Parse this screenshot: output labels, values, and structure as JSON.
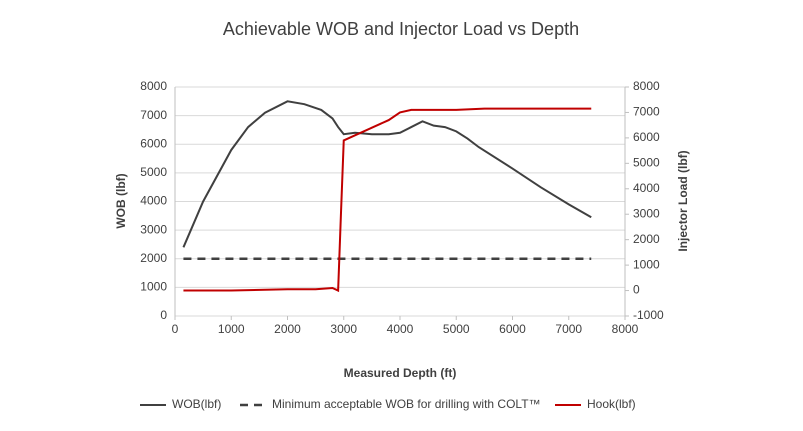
{
  "chart_data": {
    "type": "line",
    "title": "Achievable WOB and Injector Load vs Depth",
    "x_label": "Measured Depth (ft)",
    "y_label": "WOB (lbf)",
    "y2_label": "Injector Load (lbf)",
    "xlim": [
      0,
      8000
    ],
    "xticks": [
      0,
      1000,
      2000,
      3000,
      4000,
      5000,
      6000,
      7000,
      8000
    ],
    "ylim": [
      0,
      8000
    ],
    "yticks": [
      0,
      1000,
      2000,
      3000,
      4000,
      5000,
      6000,
      7000,
      8000
    ],
    "y2lim": [
      -1000,
      8000
    ],
    "y2ticks": [
      -1000,
      0,
      1000,
      2000,
      3000,
      4000,
      5000,
      6000,
      7000,
      8000
    ],
    "grid": true,
    "legend": "bottom",
    "series": [
      {
        "name": "WOB(lbf)",
        "color": "#404040",
        "line_style": "solid",
        "x": [
          150,
          500,
          1000,
          1300,
          1600,
          2000,
          2300,
          2600,
          2800,
          2900,
          3000,
          3200,
          3500,
          3800,
          4000,
          4200,
          4400,
          4600,
          4800,
          5000,
          5200,
          5400,
          6000,
          6500,
          7000,
          7400
        ],
        "values": [
          2400,
          4000,
          5800,
          6600,
          7100,
          7500,
          7400,
          7200,
          6900,
          6600,
          6350,
          6400,
          6350,
          6350,
          6400,
          6600,
          6800,
          6650,
          6600,
          6450,
          6200,
          5900,
          5150,
          4500,
          3900,
          3450
        ]
      },
      {
        "name": "Minimum acceptable WOB for drilling with COLT™",
        "color": "#404040",
        "line_style": "dashed",
        "x": [
          150,
          7400
        ],
        "values": [
          2000,
          2000
        ]
      },
      {
        "name": "Hook(lbf)",
        "color": "#c00000",
        "line_style": "solid",
        "axis": "y2",
        "x": [
          150,
          1000,
          2000,
          2500,
          2800,
          2900,
          2950,
          3000,
          3200,
          3500,
          3800,
          4000,
          4200,
          5000,
          5500,
          7400
        ],
        "values": [
          0,
          0,
          50,
          50,
          100,
          0,
          3000,
          5900,
          6100,
          6400,
          6700,
          7000,
          7100,
          7100,
          7150,
          7150
        ]
      }
    ]
  }
}
